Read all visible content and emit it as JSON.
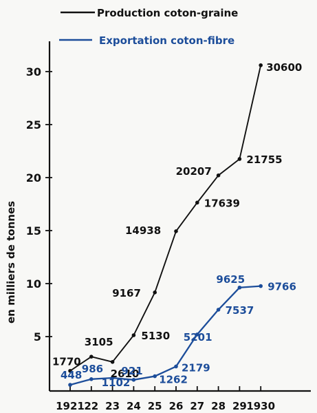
{
  "chart_data": {
    "type": "line",
    "x": [
      1921,
      1922,
      1923,
      1924,
      1925,
      1926,
      1927,
      1928,
      1929,
      1930
    ],
    "x_tick_labels": [
      "1921",
      "22",
      "23",
      "24",
      "25",
      "26",
      "27",
      "28",
      "29",
      "1930"
    ],
    "ylabel": "en milliers de tonnes",
    "ylim": [
      0,
      30.6
    ],
    "y_ticks": [
      5,
      10,
      15,
      20,
      25,
      30
    ],
    "y_tick_labels": [
      "5",
      "10",
      "15",
      "20",
      "25",
      "30"
    ],
    "legend_placement": "top",
    "series": [
      {
        "name": "Production coton-graine",
        "color": "#111111",
        "values": [
          1.77,
          3.105,
          2.61,
          5.13,
          9.167,
          14.938,
          17.639,
          20.207,
          21.755,
          30.6
        ],
        "data_labels": [
          "1770",
          "3105",
          "2610",
          "5130",
          "9167",
          "14938",
          "17639",
          "20207",
          "21755",
          "30600"
        ]
      },
      {
        "name": "Exportation coton-fibre",
        "color": "#1c4d9a",
        "values": [
          0.448,
          0.986,
          1.102,
          0.921,
          1.262,
          2.179,
          5.201,
          7.537,
          9.625,
          9.766
        ],
        "data_labels": [
          "448",
          "986",
          "1102",
          "921",
          "1262",
          "2179",
          "5201",
          "7537",
          "9625",
          "9766"
        ]
      }
    ]
  }
}
